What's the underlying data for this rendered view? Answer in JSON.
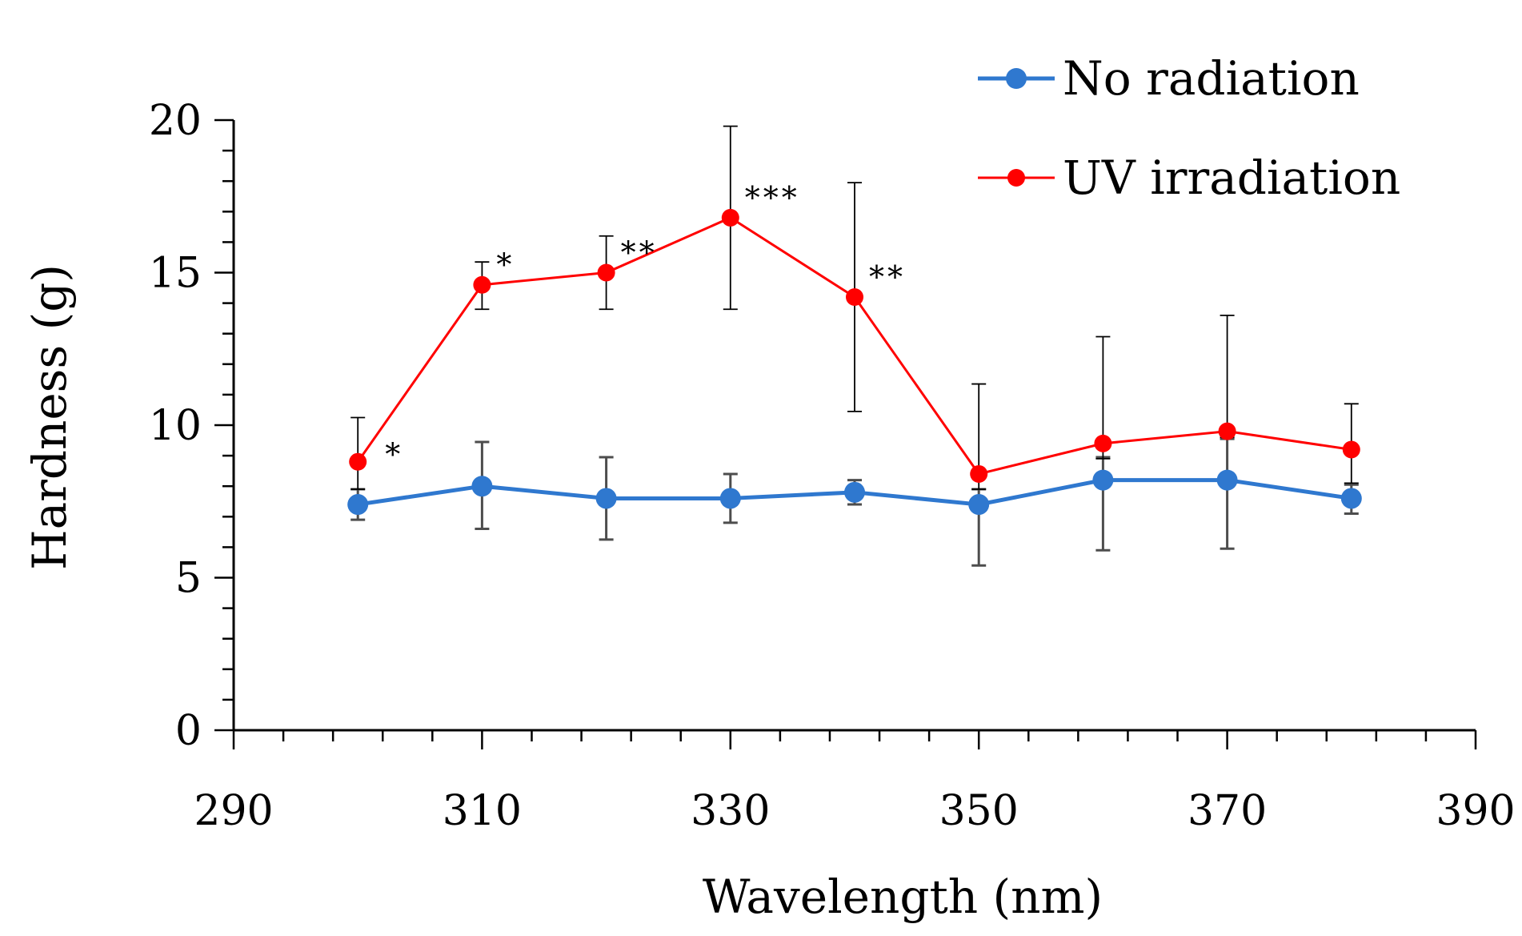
{
  "chart_data": {
    "type": "line",
    "xlabel": "Wavelength (nm)",
    "ylabel": "Hardness (g)",
    "xlim": [
      290,
      390
    ],
    "ylim": [
      0,
      20
    ],
    "x_ticks": [
      "290",
      "310",
      "330",
      "350",
      "370",
      "390"
    ],
    "y_ticks": [
      "0",
      "5",
      "10",
      "15",
      "20"
    ],
    "x_minor_step": 4,
    "y_minor_step": 1,
    "legend_position": "top-right",
    "x": [
      300,
      310,
      320,
      330,
      340,
      350,
      360,
      370,
      380
    ],
    "series": [
      {
        "name": "No radiation",
        "color": "#2f78cf",
        "values": [
          7.4,
          8.0,
          7.6,
          7.6,
          7.8,
          7.4,
          8.2,
          8.2,
          7.6
        ],
        "err_low": [
          0.5,
          1.4,
          1.35,
          0.8,
          0.4,
          2.0,
          2.3,
          2.25,
          0.5
        ],
        "err_high": [
          0.5,
          1.45,
          1.35,
          0.8,
          0.4,
          0.5,
          0.75,
          1.35,
          0.45
        ]
      },
      {
        "name": "UV irradiation",
        "color": "#ff0000",
        "values": [
          8.8,
          14.6,
          15.0,
          16.8,
          14.2,
          8.4,
          9.4,
          9.8,
          9.2
        ],
        "err_low": [
          0.9,
          0.8,
          1.2,
          3.0,
          3.75,
          0.5,
          0.5,
          0.2,
          1.1
        ],
        "err_high": [
          1.45,
          0.75,
          1.2,
          3.0,
          3.75,
          2.95,
          3.5,
          3.8,
          1.5
        ]
      }
    ],
    "annotations": [
      {
        "x": 300,
        "text": "*"
      },
      {
        "x": 310,
        "text": "*"
      },
      {
        "x": 320,
        "text": "**"
      },
      {
        "x": 330,
        "text": "***"
      },
      {
        "x": 340,
        "text": "**"
      }
    ]
  }
}
